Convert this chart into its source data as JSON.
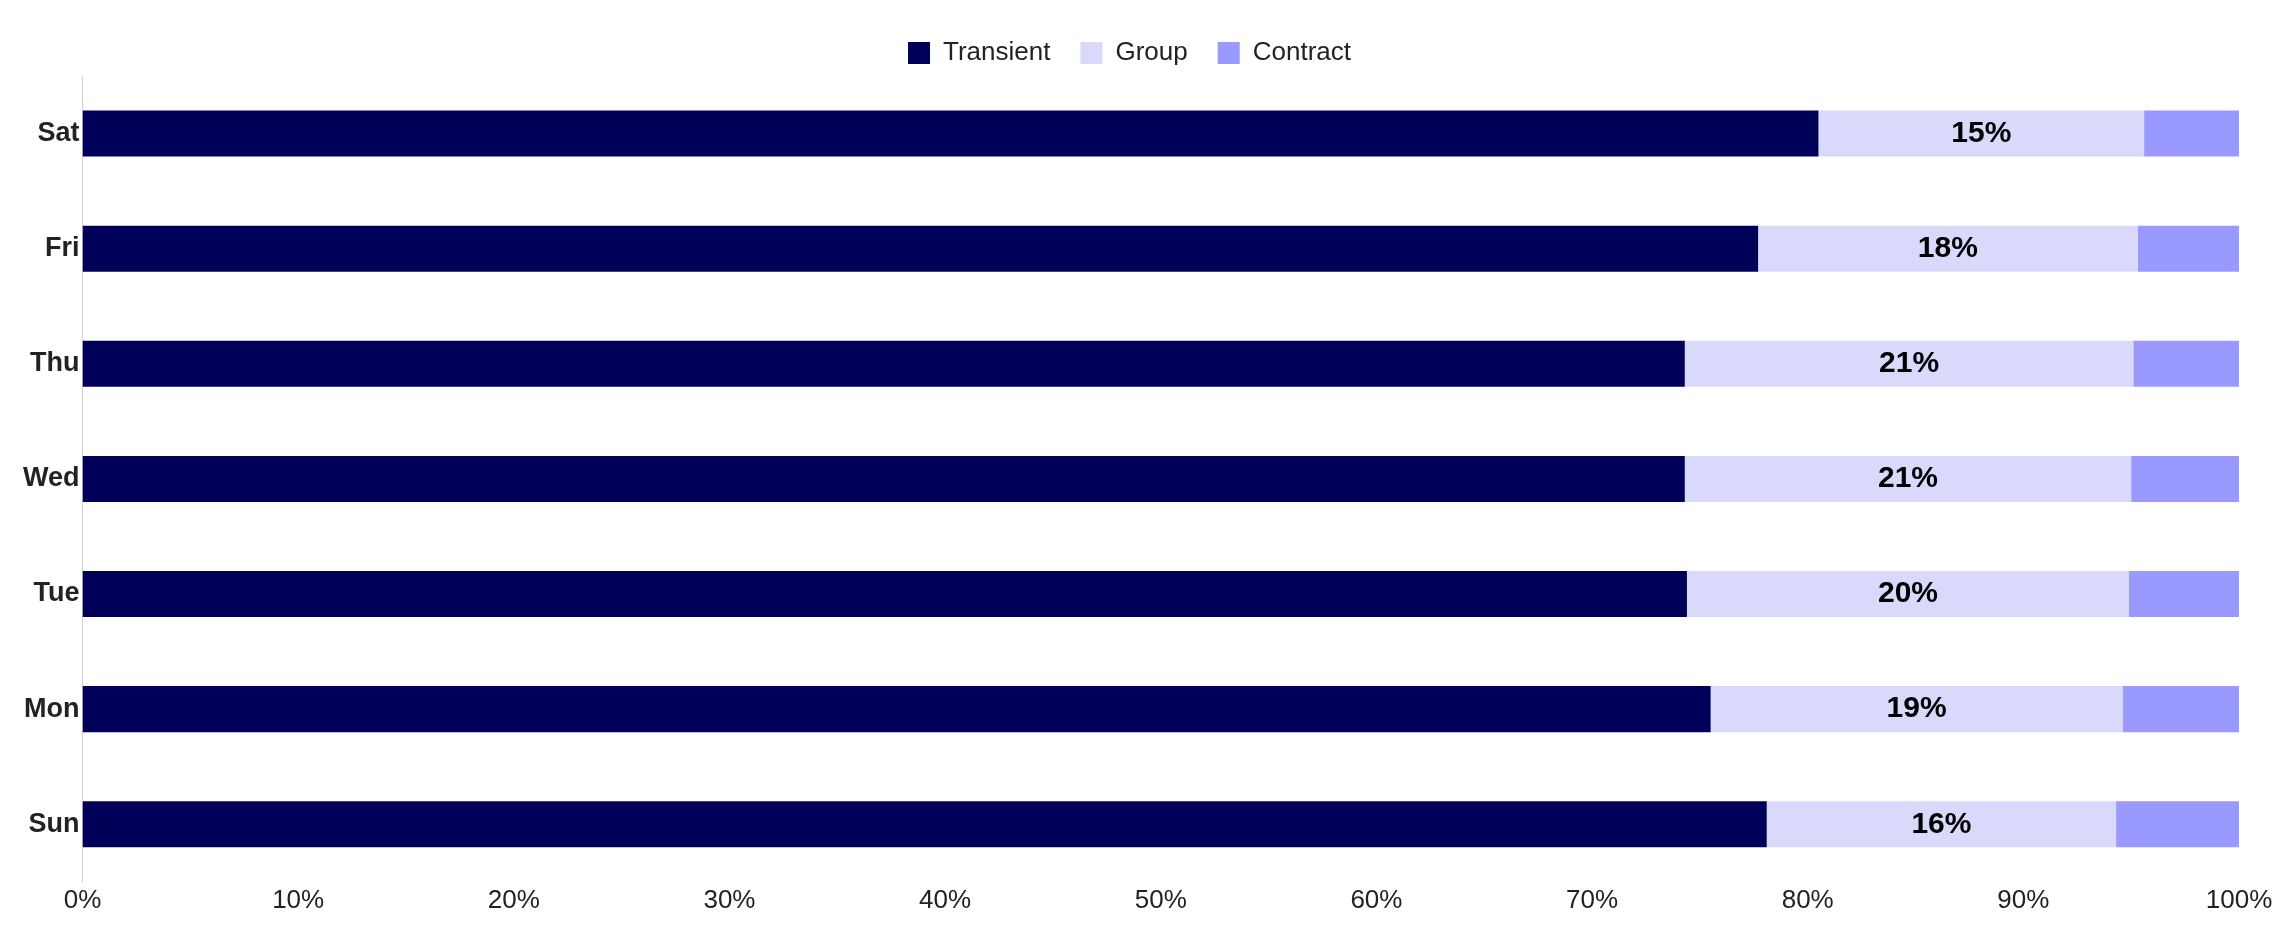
{
  "chart_data": {
    "type": "bar",
    "orientation": "horizontal",
    "stacked": true,
    "categories": [
      "Sat",
      "Fri",
      "Thu",
      "Wed",
      "Tue",
      "Mon",
      "Sun"
    ],
    "series": [
      {
        "name": "Transient",
        "color": "#000058",
        "values": [
          80.5,
          77.7,
          74.3,
          74.3,
          74.4,
          75.5,
          78.1
        ]
      },
      {
        "name": "Group",
        "color": "#d9d9fb",
        "values": [
          15.1,
          17.6,
          20.8,
          20.7,
          20.5,
          19.1,
          16.2
        ],
        "value_labels": [
          "15%",
          "18%",
          "21%",
          "21%",
          "20%",
          "19%",
          "16%"
        ]
      },
      {
        "name": "Contract",
        "color": "#9999ff",
        "values": [
          4.4,
          4.7,
          4.9,
          5.0,
          5.1,
          5.4,
          5.7
        ]
      }
    ],
    "xlim": [
      0,
      100
    ],
    "xticks": [
      {
        "value": 0,
        "label": "0%"
      },
      {
        "value": 10,
        "label": "10%"
      },
      {
        "value": 20,
        "label": "20%"
      },
      {
        "value": 30,
        "label": "30%"
      },
      {
        "value": 40,
        "label": "40%"
      },
      {
        "value": 50,
        "label": "50%"
      },
      {
        "value": 60,
        "label": "60%"
      },
      {
        "value": 70,
        "label": "70%"
      },
      {
        "value": 80,
        "label": "80%"
      },
      {
        "value": 90,
        "label": "90%"
      },
      {
        "value": 100,
        "label": "100%"
      }
    ],
    "grid": false,
    "legend": "top"
  }
}
